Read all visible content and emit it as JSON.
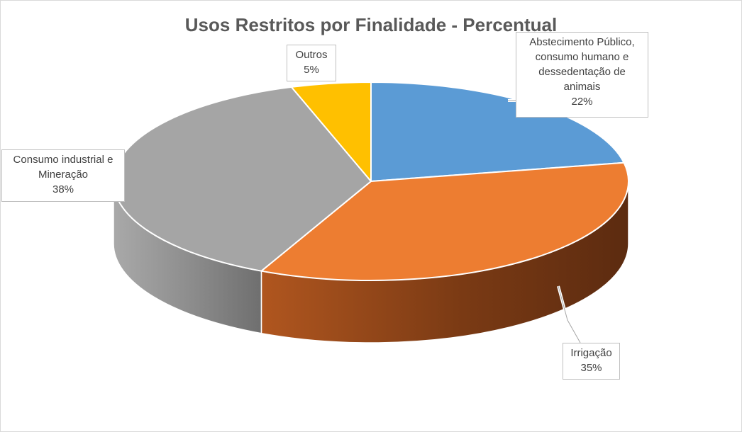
{
  "chart_data": {
    "type": "pie",
    "title": "Usos Restritos por Finalidade - Percentual",
    "slices": [
      {
        "label_lines": [
          "Abstecimento Público,",
          "consumo humano e",
          "dessedentação de",
          "animais"
        ],
        "value": 22,
        "value_label": "22%",
        "color": "#5b9bd5"
      },
      {
        "label_lines": [
          "Irrigação"
        ],
        "value": 35,
        "value_label": "35%",
        "color": "#ed7d31"
      },
      {
        "label_lines": [
          "Consumo industrial e",
          "Mineração"
        ],
        "value": 38,
        "value_label": "38%",
        "color": "#a5a5a5"
      },
      {
        "label_lines": [
          "Outros"
        ],
        "value": 5,
        "value_label": "5%",
        "color": "#ffc000"
      }
    ],
    "style": "3d",
    "legend": "none",
    "data_labels": "callouts"
  }
}
